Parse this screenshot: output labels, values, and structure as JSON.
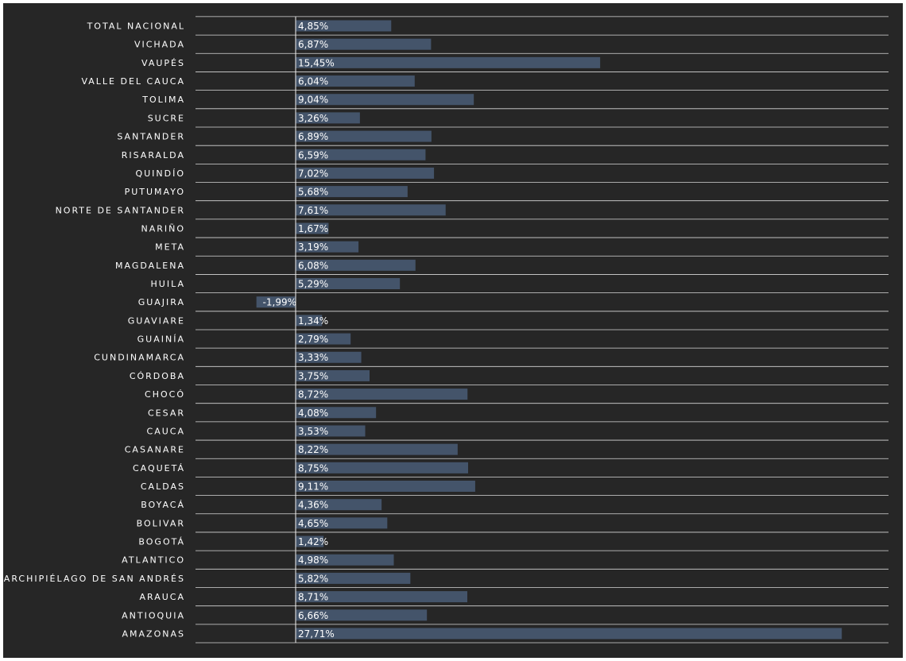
{
  "chart_data": {
    "type": "bar",
    "orientation": "horizontal",
    "categories": [
      "TOTAL NACIONAL",
      "VICHADA",
      "VAUPÉS",
      "VALLE DEL CAUCA",
      "TOLIMA",
      "SUCRE",
      "SANTANDER",
      "RISARALDA",
      "QUINDÍO",
      "PUTUMAYO",
      "NORTE DE SANTANDER",
      "NARIÑO",
      "META",
      "MAGDALENA",
      "HUILA",
      "GUAJIRA",
      "GUAVIARE",
      "GUAINÍA",
      "CUNDINAMARCA",
      "CÓRDOBA",
      "CHOCÓ",
      "CESAR",
      "CAUCA",
      "CASANARE",
      "CAQUETÁ",
      "CALDAS",
      "BOYACÁ",
      "BOLIVAR",
      "BOGOTÁ",
      "ATLANTICO",
      "ARCHIPIÉLAGO DE SAN ANDRÉS",
      "ARAUCA",
      "ANTIOQUIA",
      "AMAZONAS"
    ],
    "values": [
      4.85,
      6.87,
      15.45,
      6.04,
      9.04,
      3.26,
      6.89,
      6.59,
      7.02,
      5.68,
      7.61,
      1.67,
      3.19,
      6.08,
      5.29,
      -1.99,
      1.34,
      2.79,
      3.33,
      3.75,
      8.72,
      4.08,
      3.53,
      8.22,
      8.75,
      9.11,
      4.36,
      4.65,
      1.42,
      4.98,
      5.82,
      8.71,
      6.66,
      27.71
    ],
    "value_labels": [
      "4,85%",
      "6,87%",
      "15,45%",
      "6,04%",
      "9,04%",
      "3,26%",
      "6,89%",
      "6,59%",
      "7,02%",
      "5,68%",
      "7,61%",
      "1,67%",
      "3,19%",
      "6,08%",
      "5,29%",
      "-1,99%",
      "1,34%",
      "2,79%",
      "3,33%",
      "3,75%",
      "8,72%",
      "4,08%",
      "3,53%",
      "8,22%",
      "8,75%",
      "9,11%",
      "4,36%",
      "4,65%",
      "1,42%",
      "4,98%",
      "5,82%",
      "8,71%",
      "6,66%",
      "27,71%"
    ],
    "value_unit": "%",
    "xlim": [
      -2,
      30
    ],
    "grid": "horizontal row separators",
    "title": "",
    "xlabel": "",
    "ylabel": "",
    "colors": {
      "background": "#262626",
      "bar": "#44546a",
      "text": "#ffffff",
      "gridline": "#d9d9d9",
      "zero_axis": "#f2f2f2"
    }
  }
}
